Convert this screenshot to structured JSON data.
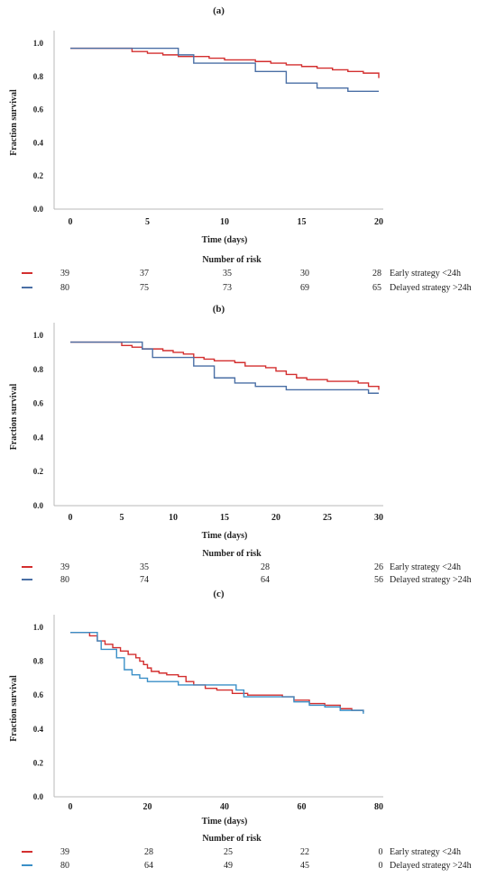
{
  "colors": {
    "early": "#d32f2f",
    "delayed": "#4a6fa5",
    "delayed_c": "#3a8fc7",
    "axis": "#b8b8b8"
  },
  "chart_data": [
    {
      "panel": "(a)",
      "type": "line",
      "step": true,
      "ylabel": "Fraction survival",
      "xlabel": "Time (days)",
      "xlim": [
        0,
        20
      ],
      "ylim": [
        0,
        1
      ],
      "xticks": [
        "0",
        "5",
        "10",
        "15",
        "20"
      ],
      "yticks": [
        "0.0",
        "0.2",
        "0.4",
        "0.6",
        "0.8",
        "1.0"
      ],
      "series": [
        {
          "name": "Early strategy <24h",
          "color_key": "early",
          "points": [
            [
              0,
              0.97
            ],
            [
              4,
              0.95
            ],
            [
              5,
              0.94
            ],
            [
              6,
              0.93
            ],
            [
              7,
              0.92
            ],
            [
              9,
              0.91
            ],
            [
              10,
              0.9
            ],
            [
              12,
              0.89
            ],
            [
              13,
              0.88
            ],
            [
              14,
              0.87
            ],
            [
              15,
              0.86
            ],
            [
              16,
              0.85
            ],
            [
              17,
              0.84
            ],
            [
              18,
              0.83
            ],
            [
              19,
              0.82
            ],
            [
              20,
              0.79
            ]
          ]
        },
        {
          "name": "Delayed strategy >24h",
          "color_key": "delayed",
          "points": [
            [
              0,
              0.97
            ],
            [
              7,
              0.93
            ],
            [
              8,
              0.88
            ],
            [
              12,
              0.83
            ],
            [
              14,
              0.76
            ],
            [
              16,
              0.73
            ],
            [
              18,
              0.71
            ],
            [
              20,
              0.71
            ]
          ]
        }
      ],
      "risk_title": "Number of risk",
      "risk_rows": [
        {
          "values": [
            "39",
            "37",
            "35",
            "30",
            "28"
          ],
          "label": "Early strategy <24h",
          "color_key": "early"
        },
        {
          "values": [
            "80",
            "75",
            "73",
            "69",
            "65"
          ],
          "label": "Delayed strategy >24h",
          "color_key": "delayed"
        }
      ]
    },
    {
      "panel": "(b)",
      "type": "line",
      "step": true,
      "ylabel": "Fraction survival",
      "xlabel": "Time (days)",
      "xlim": [
        0,
        30
      ],
      "ylim": [
        0,
        1
      ],
      "xticks": [
        "0",
        "5",
        "10",
        "15",
        "20",
        "25",
        "30"
      ],
      "yticks": [
        "0.0",
        "0.2",
        "0.4",
        "0.6",
        "0.8",
        "1.0"
      ],
      "series": [
        {
          "name": "Early strategy <24h",
          "color_key": "early",
          "points": [
            [
              0,
              0.96
            ],
            [
              5,
              0.94
            ],
            [
              6,
              0.93
            ],
            [
              7,
              0.92
            ],
            [
              9,
              0.91
            ],
            [
              10,
              0.9
            ],
            [
              11,
              0.89
            ],
            [
              12,
              0.87
            ],
            [
              13,
              0.86
            ],
            [
              14,
              0.85
            ],
            [
              16,
              0.84
            ],
            [
              17,
              0.82
            ],
            [
              19,
              0.81
            ],
            [
              20,
              0.79
            ],
            [
              21,
              0.77
            ],
            [
              22,
              0.75
            ],
            [
              23,
              0.74
            ],
            [
              25,
              0.73
            ],
            [
              28,
              0.72
            ],
            [
              29,
              0.7
            ],
            [
              30,
              0.68
            ]
          ]
        },
        {
          "name": "Delayed strategy >24h",
          "color_key": "delayed",
          "points": [
            [
              0,
              0.96
            ],
            [
              7,
              0.92
            ],
            [
              8,
              0.87
            ],
            [
              12,
              0.82
            ],
            [
              14,
              0.75
            ],
            [
              16,
              0.72
            ],
            [
              18,
              0.7
            ],
            [
              21,
              0.68
            ],
            [
              29,
              0.66
            ],
            [
              30,
              0.66
            ]
          ]
        }
      ],
      "risk_title": "Number of risk",
      "risk_rows": [
        {
          "values": [
            "39",
            "35",
            "28",
            "26"
          ],
          "label": "Early strategy <24h",
          "color_key": "early"
        },
        {
          "values": [
            "80",
            "74",
            "64",
            "56"
          ],
          "label": "Delayed strategy >24h",
          "color_key": "delayed"
        }
      ]
    },
    {
      "panel": "(c)",
      "type": "line",
      "step": true,
      "ylabel": "Fraction survival",
      "xlabel": "Time (days)",
      "xlim": [
        0,
        80
      ],
      "ylim": [
        0,
        1
      ],
      "xticks": [
        "0",
        "20",
        "40",
        "60",
        "80"
      ],
      "yticks": [
        "0.0",
        "0.2",
        "0.4",
        "0.6",
        "0.8",
        "1.0"
      ],
      "series": [
        {
          "name": "Early strategy <24h",
          "color_key": "early",
          "points": [
            [
              0,
              0.97
            ],
            [
              5,
              0.95
            ],
            [
              7,
              0.92
            ],
            [
              9,
              0.9
            ],
            [
              11,
              0.88
            ],
            [
              13,
              0.86
            ],
            [
              15,
              0.84
            ],
            [
              17,
              0.82
            ],
            [
              18,
              0.8
            ],
            [
              19,
              0.78
            ],
            [
              20,
              0.76
            ],
            [
              21,
              0.74
            ],
            [
              23,
              0.73
            ],
            [
              25,
              0.72
            ],
            [
              28,
              0.71
            ],
            [
              30,
              0.68
            ],
            [
              32,
              0.66
            ],
            [
              35,
              0.64
            ],
            [
              38,
              0.63
            ],
            [
              42,
              0.61
            ],
            [
              46,
              0.6
            ],
            [
              55,
              0.59
            ],
            [
              58,
              0.57
            ],
            [
              62,
              0.55
            ],
            [
              66,
              0.54
            ],
            [
              70,
              0.52
            ],
            [
              73,
              0.51
            ],
            [
              76,
              0.5
            ]
          ]
        },
        {
          "name": "Delayed strategy >24h",
          "color_key": "delayed_c",
          "points": [
            [
              0,
              0.97
            ],
            [
              7,
              0.92
            ],
            [
              8,
              0.87
            ],
            [
              12,
              0.82
            ],
            [
              14,
              0.75
            ],
            [
              16,
              0.72
            ],
            [
              18,
              0.7
            ],
            [
              20,
              0.68
            ],
            [
              28,
              0.66
            ],
            [
              35,
              0.66
            ],
            [
              43,
              0.63
            ],
            [
              45,
              0.59
            ],
            [
              55,
              0.59
            ],
            [
              58,
              0.56
            ],
            [
              62,
              0.54
            ],
            [
              66,
              0.53
            ],
            [
              70,
              0.51
            ],
            [
              76,
              0.49
            ]
          ]
        }
      ],
      "risk_title": "Number of risk",
      "risk_rows": [
        {
          "values": [
            "39",
            "28",
            "25",
            "22",
            "0"
          ],
          "label": "Early strategy <24h",
          "color_key": "early"
        },
        {
          "values": [
            "80",
            "64",
            "49",
            "45",
            "0"
          ],
          "label": "Delayed strategy >24h",
          "color_key": "delayed_c"
        }
      ]
    }
  ]
}
